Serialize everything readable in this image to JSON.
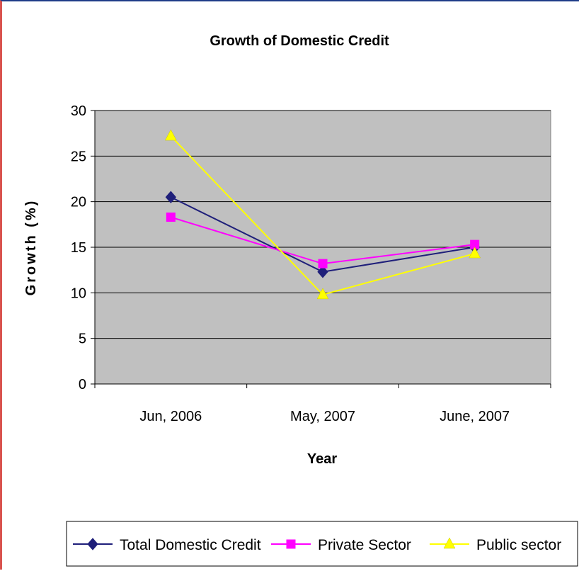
{
  "chart_data": {
    "type": "line",
    "title": "Growth of Domestic Credit",
    "xlabel": "Year",
    "ylabel": "Growth (%)",
    "categories": [
      "Jun, 2006",
      "May, 2007",
      "June, 2007"
    ],
    "ylim": [
      0,
      30
    ],
    "yticks": [
      0,
      5,
      10,
      15,
      20,
      25,
      30
    ],
    "grid": true,
    "legend_position": "bottom",
    "plot_background": "#c0c0c0",
    "series": [
      {
        "name": "Total Domestic Credit",
        "values": [
          20.5,
          12.3,
          15.0
        ],
        "color": "#1f1f7a",
        "marker": "diamond"
      },
      {
        "name": "Private Sector",
        "values": [
          18.3,
          13.2,
          15.3
        ],
        "color": "#ff00ff",
        "marker": "square"
      },
      {
        "name": "Public sector",
        "values": [
          27.2,
          9.8,
          14.3
        ],
        "color": "#ffff00",
        "marker": "triangle"
      }
    ]
  }
}
